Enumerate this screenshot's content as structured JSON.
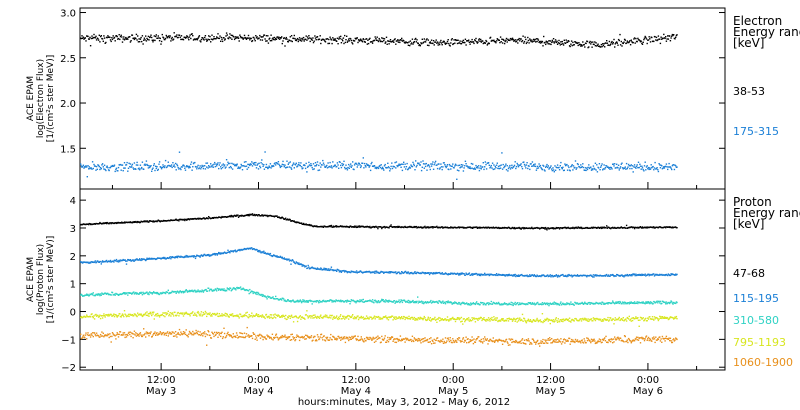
{
  "chart_data": {
    "type": "scatter",
    "xlabel": "hours:minutes, May  3, 2012 - May  6, 2012",
    "x_ticks": [
      {
        "time": "12:00",
        "date": "May 3",
        "hours": 12
      },
      {
        "time": "0:00",
        "date": "May 4",
        "hours": 24
      },
      {
        "time": "12:00",
        "date": "May 4",
        "hours": 36
      },
      {
        "time": "0:00",
        "date": "May 5",
        "hours": 48
      },
      {
        "time": "12:00",
        "date": "May 5",
        "hours": 60
      },
      {
        "time": "0:00",
        "date": "May 6",
        "hours": 72
      }
    ],
    "xlim_hours": [
      2,
      81.5
    ],
    "data_end_hours": 75.5,
    "panels": [
      {
        "id": "electron",
        "ylabel": [
          "ACE EPAM",
          "log(Electron Flux)",
          "[1/(cm²s ster MeV)]"
        ],
        "ylim": [
          1.05,
          3.05
        ],
        "yticks": [
          1.5,
          2.0,
          2.5,
          3.0
        ],
        "ytick_labels": [
          "1.5",
          "2.0",
          "2.5",
          "3.0"
        ],
        "legend_title": [
          "Electron",
          "Energy range",
          "[keV]"
        ],
        "series": [
          {
            "name": "38-53",
            "color": "#000000",
            "profile": [
              [
                2,
                2.72
              ],
              [
                20,
                2.73
              ],
              [
                38,
                2.7
              ],
              [
                46,
                2.67
              ],
              [
                56,
                2.7
              ],
              [
                66,
                2.65
              ],
              [
                75.5,
                2.74
              ]
            ],
            "scatter": 0.06
          },
          {
            "name": "175-315",
            "color": "#1a7fd6",
            "profile": [
              [
                2,
                1.3
              ],
              [
                24,
                1.32
              ],
              [
                48,
                1.31
              ],
              [
                75.5,
                1.3
              ]
            ],
            "scatter": 0.07
          }
        ]
      },
      {
        "id": "proton",
        "ylabel": [
          "ACE EPAM",
          "log(Proton Flux)",
          "[1/(cm²s ster MeV)]"
        ],
        "ylim": [
          -2.1,
          4.4
        ],
        "yticks": [
          -2,
          -1,
          0,
          1,
          2,
          3,
          4
        ],
        "ytick_labels": [
          "−2",
          "−1",
          "0",
          "1",
          "2",
          "3",
          "4"
        ],
        "legend_title": [
          "Proton",
          "Energy range",
          "[keV]"
        ],
        "series": [
          {
            "name": "47-68",
            "color": "#000000",
            "profile": [
              [
                2,
                3.15
              ],
              [
                10,
                3.25
              ],
              [
                18,
                3.38
              ],
              [
                23,
                3.5
              ],
              [
                26,
                3.45
              ],
              [
                29,
                3.2
              ],
              [
                31,
                3.08
              ],
              [
                45,
                3.05
              ],
              [
                60,
                3.02
              ],
              [
                75.5,
                3.05
              ]
            ],
            "scatter": 0.04
          },
          {
            "name": "115-195",
            "color": "#1a7fd6",
            "profile": [
              [
                2,
                1.78
              ],
              [
                10,
                1.9
              ],
              [
                18,
                2.05
              ],
              [
                23,
                2.3
              ],
              [
                25,
                2.1
              ],
              [
                28,
                1.85
              ],
              [
                30,
                1.6
              ],
              [
                35,
                1.45
              ],
              [
                45,
                1.4
              ],
              [
                52,
                1.35
              ],
              [
                60,
                1.3
              ],
              [
                75.5,
                1.35
              ]
            ],
            "scatter": 0.06
          },
          {
            "name": "310-580",
            "color": "#2fd2c4",
            "profile": [
              [
                2,
                0.62
              ],
              [
                12,
                0.7
              ],
              [
                22,
                0.85
              ],
              [
                25,
                0.55
              ],
              [
                28,
                0.4
              ],
              [
                40,
                0.4
              ],
              [
                50,
                0.32
              ],
              [
                60,
                0.3
              ],
              [
                75.5,
                0.35
              ]
            ],
            "scatter": 0.08
          },
          {
            "name": "795-1193",
            "color": "#d8e620",
            "profile": [
              [
                2,
                -0.15
              ],
              [
                15,
                -0.05
              ],
              [
                25,
                -0.15
              ],
              [
                40,
                -0.2
              ],
              [
                60,
                -0.3
              ],
              [
                75.5,
                -0.2
              ]
            ],
            "scatter": 0.12
          },
          {
            "name": "1060-1900",
            "color": "#e8901c",
            "profile": [
              [
                2,
                -0.85
              ],
              [
                15,
                -0.75
              ],
              [
                25,
                -0.9
              ],
              [
                45,
                -1.0
              ],
              [
                60,
                -1.05
              ],
              [
                75.5,
                -0.95
              ]
            ],
            "scatter": 0.18
          }
        ]
      }
    ]
  }
}
